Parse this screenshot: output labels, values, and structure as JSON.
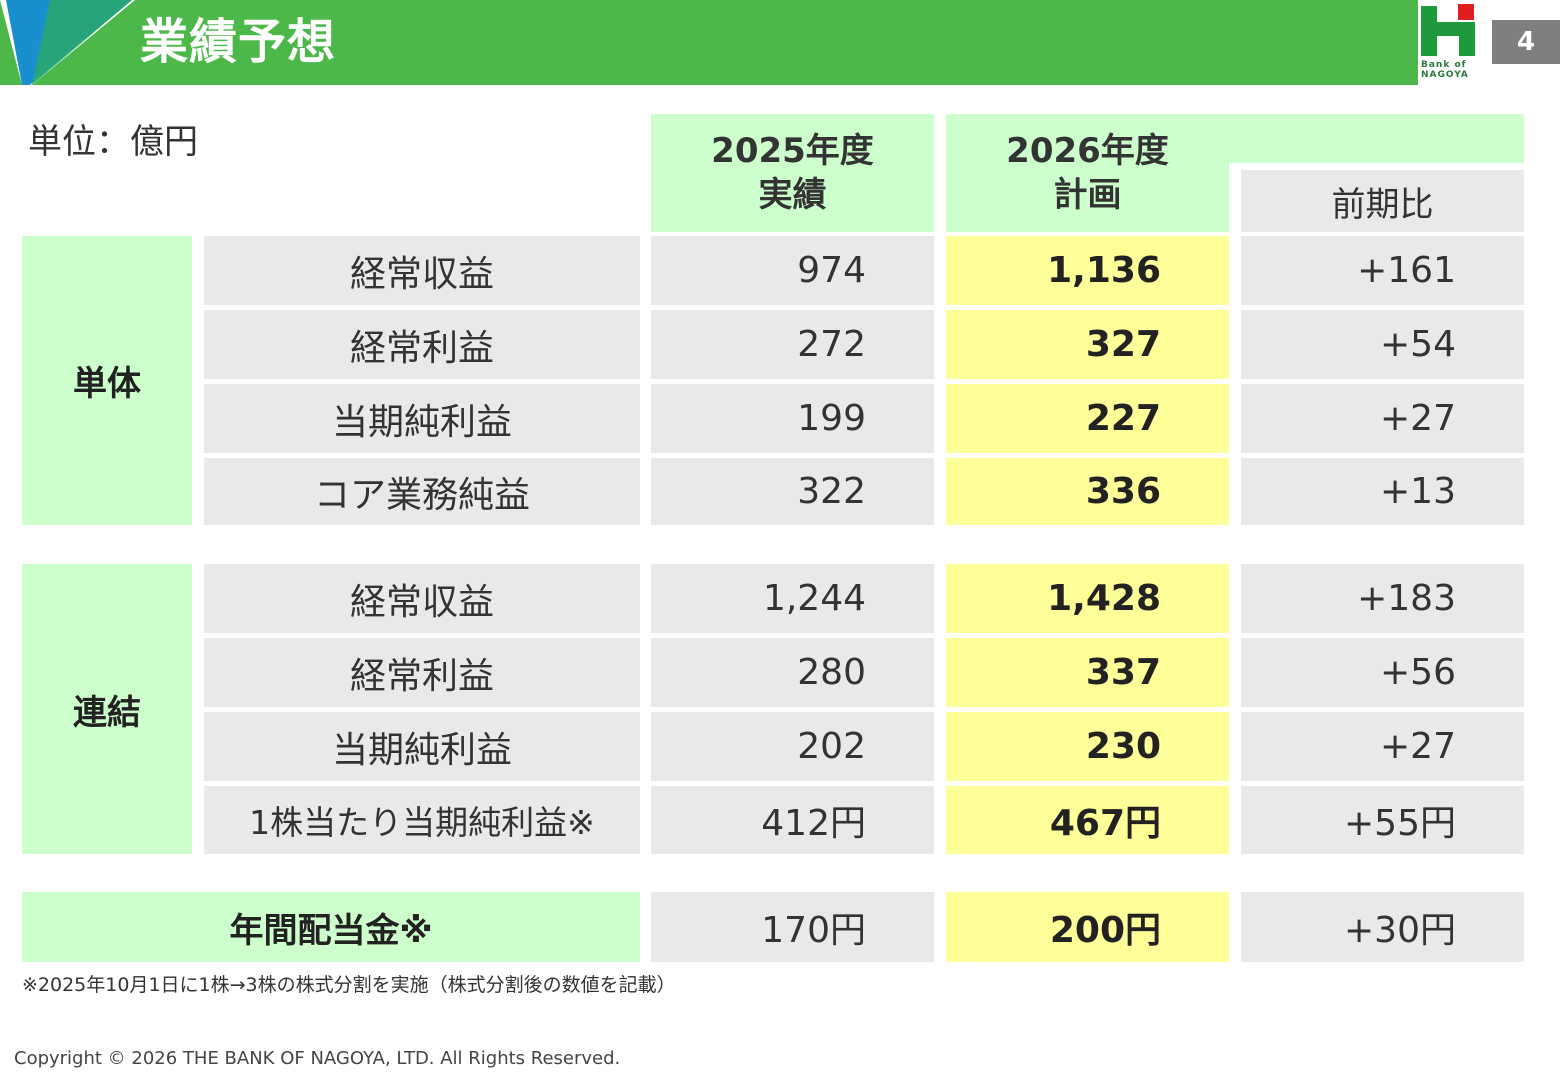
{
  "header": {
    "title": "業績予想",
    "page_number": "4",
    "logo": "Bank of NAGOYA"
  },
  "table": {
    "unit": "単位：億円",
    "col_2025": [
      "2025年度",
      "実績"
    ],
    "col_2026": [
      "2026年度",
      "計画"
    ],
    "col_change": "前期比",
    "groups": [
      {
        "name": "単体",
        "rows": [
          {
            "label": "経常収益",
            "y2025": "974",
            "y2026": "1,136",
            "change": "+161"
          },
          {
            "label": "経常利益",
            "y2025": "272",
            "y2026": "327",
            "change": "+54"
          },
          {
            "label": "当期純利益",
            "y2025": "199",
            "y2026": "227",
            "change": "+27"
          },
          {
            "label": "コア業務純益",
            "y2025": "322",
            "y2026": "336",
            "change": "+13"
          }
        ]
      },
      {
        "name": "連結",
        "rows": [
          {
            "label": "経常収益",
            "y2025": "1,244",
            "y2026": "1,428",
            "change": "+183"
          },
          {
            "label": "経常利益",
            "y2025": "280",
            "y2026": "337",
            "change": "+56"
          },
          {
            "label": "当期純利益",
            "y2025": "202",
            "y2026": "230",
            "change": "+27"
          },
          {
            "label": "1株当たり当期純利益※",
            "y2025": "412円",
            "y2026": "467円",
            "change": "+55円"
          }
        ]
      }
    ],
    "dividend": {
      "label": "年間配当金※",
      "y2025": "170円",
      "y2026": "200円",
      "change": "+30円"
    }
  },
  "footnote": "※2025年10月1日に1株→3株の株式分割を実施（株式分割後の数値を記載）",
  "copyright": "Copyright © 2026 THE BANK OF NAGOYA, LTD. All Rights Reserved.",
  "colors": {
    "header_green": "#4cb849",
    "label_green": "#ccffcc",
    "plan_yellow": "#ffff99",
    "cell_gray": "#e9e9e9"
  }
}
